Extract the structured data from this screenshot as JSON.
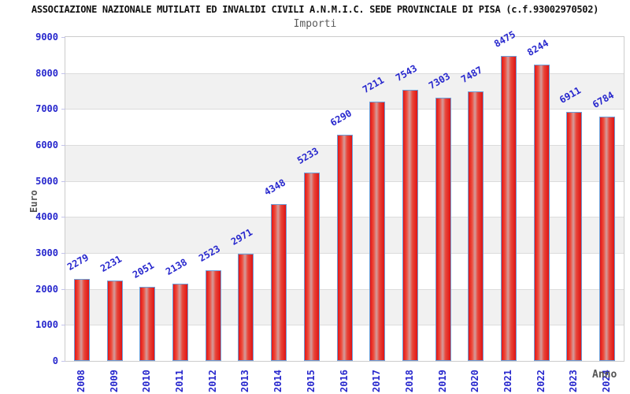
{
  "chart_data": {
    "type": "bar",
    "title": "ASSOCIAZIONE NAZIONALE MUTILATI ED INVALIDI CIVILI A.N.M.I.C. SEDE PROVINCIALE DI PISA (c.f.93002970502)",
    "subtitle": "Importi",
    "xlabel": "Anno",
    "ylabel": "Euro",
    "categories": [
      "2008",
      "2009",
      "2010",
      "2011",
      "2012",
      "2013",
      "2014",
      "2015",
      "2016",
      "2017",
      "2018",
      "2019",
      "2020",
      "2021",
      "2022",
      "2023",
      "2024"
    ],
    "values": [
      2279,
      2231,
      2051,
      2138,
      2523,
      2971,
      4348,
      5233,
      6290,
      7211,
      7543,
      7303,
      7487,
      8475,
      8244,
      6911,
      6784
    ],
    "ylim": [
      0,
      9000
    ],
    "ytick_step": 1000,
    "grid": "horizontal",
    "legend": "none",
    "colors": {
      "bar_fill": "#e31515",
      "bar_border": "#6b9ed8",
      "label_blue": "#2727cd",
      "axis_title_gray": "#555555",
      "band_gray": "#f1f1f1",
      "gridline": "#dcdcdc",
      "plot_border": "#cccccc"
    }
  }
}
